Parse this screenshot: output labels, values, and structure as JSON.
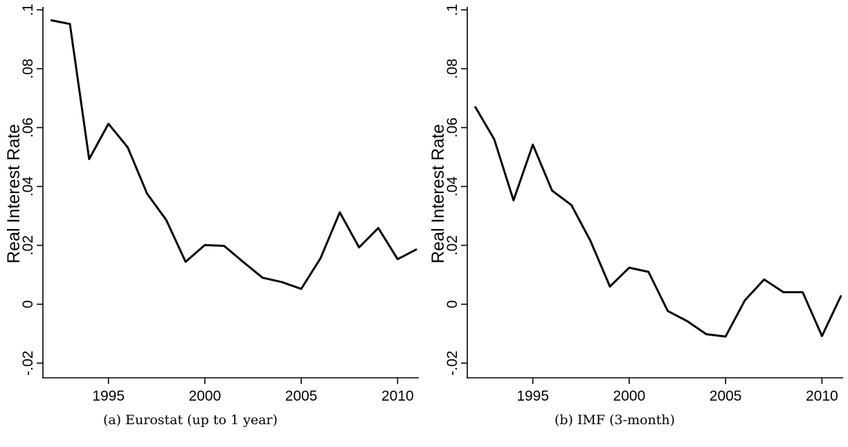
{
  "chart_data": [
    {
      "type": "line",
      "caption": "(a) Eurostat (up to 1 year)",
      "ylabel": "Real Interest Rate",
      "xlabel": "",
      "xlim": [
        1991.6,
        2011.1
      ],
      "ylim": [
        -0.025,
        0.101
      ],
      "x_ticks": [
        1995,
        2000,
        2005,
        2010
      ],
      "x_tick_labels": [
        "1995",
        "2000",
        "2005",
        "2010"
      ],
      "y_ticks": [
        -0.02,
        0,
        0.02,
        0.04,
        0.06,
        0.08,
        0.1
      ],
      "y_tick_labels": [
        "-.02",
        "0",
        ".02",
        ".04",
        ".06",
        ".08",
        ".1"
      ],
      "grid": false,
      "x": [
        1992,
        1993,
        1994,
        1995,
        1996,
        1997,
        1998,
        1999,
        2000,
        2001,
        2002,
        2003,
        2004,
        2005,
        2006,
        2007,
        2008,
        2009,
        2010,
        2011
      ],
      "values": [
        0.0965,
        0.0952,
        0.0493,
        0.0613,
        0.0533,
        0.0376,
        0.0286,
        0.0144,
        0.0201,
        0.0198,
        0.0143,
        0.009,
        0.0075,
        0.0052,
        0.0156,
        0.0312,
        0.0193,
        0.0259,
        0.0153,
        0.0187
      ]
    },
    {
      "type": "line",
      "caption": "(b) IMF (3-month)",
      "ylabel": "Real Interest Rate",
      "xlabel": "",
      "xlim": [
        1991.6,
        2011.1
      ],
      "ylim": [
        -0.025,
        0.101
      ],
      "x_ticks": [
        1995,
        2000,
        2005,
        2010
      ],
      "x_tick_labels": [
        "1995",
        "2000",
        "2005",
        "2010"
      ],
      "y_ticks": [
        -0.02,
        0,
        0.02,
        0.04,
        0.06,
        0.08,
        0.1
      ],
      "y_tick_labels": [
        "-.02",
        "0",
        ".02",
        ".04",
        ".06",
        ".08",
        ".1"
      ],
      "grid": false,
      "x": [
        1992,
        1993,
        1994,
        1995,
        1996,
        1997,
        1998,
        1999,
        2000,
        2001,
        2002,
        2003,
        2004,
        2005,
        2006,
        2007,
        2008,
        2009,
        2010,
        2011
      ],
      "values": [
        0.0672,
        0.056,
        0.0353,
        0.0542,
        0.0386,
        0.0337,
        0.0214,
        0.006,
        0.0124,
        0.011,
        -0.0023,
        -0.0057,
        -0.0102,
        -0.011,
        0.0013,
        0.0084,
        0.0041,
        0.0041,
        -0.0108,
        0.003
      ]
    },
    {
      "colors": {
        "line": "#000000",
        "axis": "#000000",
        "background": "#ffffff"
      }
    }
  ]
}
